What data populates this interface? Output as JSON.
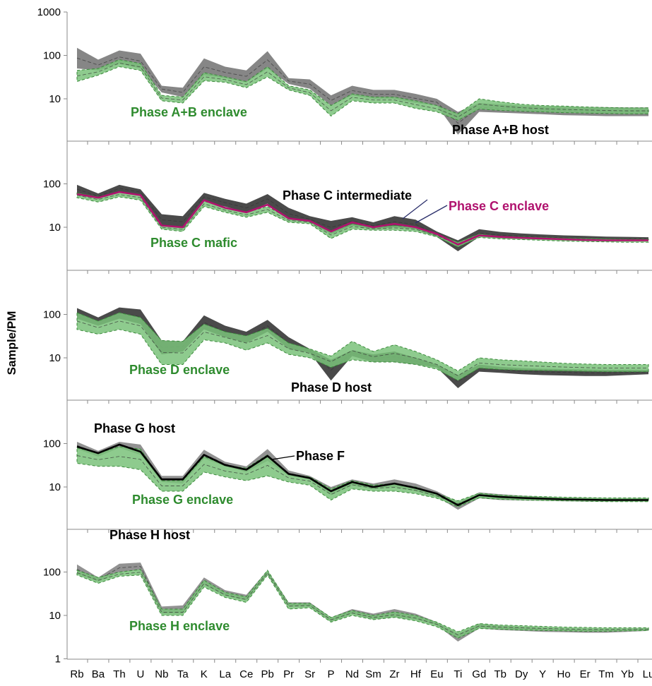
{
  "chart_data": {
    "type": "area",
    "ylabel": "Sample/PM",
    "yscale": "log",
    "categories": [
      "Rb",
      "Ba",
      "Th",
      "U",
      "Nb",
      "Ta",
      "K",
      "La",
      "Ce",
      "Pb",
      "Pr",
      "Sr",
      "P",
      "Nd",
      "Sm",
      "Zr",
      "Hf",
      "Eu",
      "Ti",
      "Gd",
      "Tb",
      "Dy",
      "Y",
      "Ho",
      "Er",
      "Tm",
      "Yb",
      "Lu"
    ],
    "colors": {
      "host": "#7f7f7f",
      "host_dark": "#404040",
      "enclave": "#7ac27a",
      "enclave_edge": "#3a8a3a",
      "magenta": "#b0126e",
      "black_label": "#000000",
      "green_label": "#2e8b2e",
      "pointer": "#2b2f6b"
    },
    "panels": [
      {
        "ylim": [
          1,
          1000
        ],
        "yticks": [
          "1000",
          "100",
          "10"
        ],
        "series": [
          {
            "role": "host",
            "color": "#7f7f7f",
            "low": [
              50,
              45,
              65,
              50,
              14,
              11,
              35,
              30,
              24,
              50,
              22,
              17,
              7,
              12,
              10,
              10,
              8,
              7,
              1.5,
              5,
              4.8,
              4.6,
              4.4,
              4.2,
              4.1,
              4,
              4,
              4
            ],
            "high": [
              150,
              80,
              130,
              110,
              20,
              18,
              85,
              55,
              45,
              125,
              30,
              28,
              12,
              20,
              16,
              16,
              13,
              10,
              5,
              8,
              7.5,
              7,
              6.8,
              6.6,
              6.5,
              6.4,
              6.3,
              6.3
            ]
          },
          {
            "role": "enclave",
            "color": "#7ac27a",
            "low": [
              25,
              35,
              55,
              45,
              9,
              8,
              26,
              24,
              18,
              32,
              16,
              12,
              4,
              9,
              8,
              8,
              6,
              5,
              3.2,
              5.8,
              5.4,
              5.2,
              5,
              4.8,
              4.7,
              4.6,
              4.5,
              4.5
            ],
            "high": [
              45,
              50,
              80,
              65,
              12,
              11,
              40,
              32,
              25,
              55,
              20,
              16,
              7,
              13,
              11,
              11,
              9,
              7,
              4.5,
              10,
              8.5,
              7.5,
              7,
              6.8,
              6.5,
              6.3,
              6.2,
              6.2
            ]
          }
        ],
        "labels": [
          {
            "text": "Phase A+B enclave",
            "color": "#2e8b2e"
          },
          {
            "text": "Phase A+B host",
            "color": "#000000"
          }
        ]
      },
      {
        "ylim": [
          1,
          1000
        ],
        "yticks": [
          "100",
          "10"
        ],
        "series": [
          {
            "role": "host",
            "color": "#404040",
            "low": [
              60,
              45,
              65,
              55,
              11,
              10,
              40,
              30,
              22,
              35,
              15,
              13,
              7,
              11,
              9,
              10,
              9,
              6,
              2.8,
              6,
              5.6,
              5.4,
              5.2,
              5,
              4.9,
              4.8,
              4.8,
              4.8
            ],
            "high": [
              95,
              60,
              95,
              75,
              20,
              18,
              62,
              45,
              35,
              58,
              28,
              18,
              14,
              17,
              13,
              18,
              15,
              8,
              5,
              9,
              7.8,
              7.2,
              6.8,
              6.5,
              6.3,
              6.1,
              6,
              5.9
            ]
          },
          {
            "role": "enclave",
            "color": "#7ac27a",
            "low": [
              48,
              38,
              50,
              42,
              9,
              8,
              30,
              22,
              17,
              22,
              13,
              12,
              5.5,
              9,
              8.5,
              8.5,
              8,
              6,
              3.5,
              5.8,
              5.4,
              5.2,
              5,
              4.8,
              4.7,
              4.6,
              4.5,
              4.5
            ],
            "high": [
              62,
              50,
              65,
              55,
              11,
              10,
              40,
              28,
              22,
              30,
              16,
              14,
              8,
              12,
              10,
              11,
              10,
              7,
              4.5,
              7,
              6.2,
              6,
              5.8,
              5.6,
              5.5,
              5.4,
              5.3,
              5.3
            ]
          },
          {
            "role": "line",
            "color": "#b0126e",
            "values": [
              58,
              48,
              65,
              55,
              11,
              10,
              42,
              28,
              22,
              33,
              16,
              14,
              8,
              13,
              10,
              12,
              10,
              7,
              4,
              6.5,
              6,
              5.7,
              5.5,
              5.3,
              5.1,
              5,
              5,
              5
            ]
          }
        ],
        "labels": [
          {
            "text": "Phase C intermediate",
            "color": "#000000"
          },
          {
            "text": "Phase C enclave",
            "color": "#b0126e"
          },
          {
            "text": "Phase C mafic",
            "color": "#2e8b2e"
          }
        ]
      },
      {
        "ylim": [
          1,
          1000
        ],
        "yticks": [
          "100",
          "10"
        ],
        "series": [
          {
            "role": "host",
            "color": "#404040",
            "low": [
              80,
              55,
              80,
              60,
              12,
              14,
              45,
              30,
              22,
              40,
              16,
              13,
              3,
              11,
              8,
              8,
              7,
              6,
              2,
              4.8,
              4.5,
              4.2,
              4,
              3.9,
              3.8,
              3.8,
              4,
              4.2
            ],
            "high": [
              140,
              85,
              145,
              130,
              25,
              24,
              95,
              55,
              40,
              75,
              30,
              16,
              9,
              15,
              12,
              14,
              10,
              7,
              4,
              7,
              6.2,
              5.8,
              5.6,
              5.5,
              5.4,
              5.3,
              5.3,
              5.3
            ]
          },
          {
            "role": "enclave",
            "color": "#7ac27a",
            "low": [
              45,
              35,
              45,
              35,
              7,
              7,
              26,
              22,
              15,
              22,
              12,
              10,
              6,
              9,
              8,
              8,
              7,
              5.5,
              3,
              5.8,
              5.4,
              5.2,
              5.1,
              5,
              4.9,
              4.8,
              4.8,
              4.8
            ],
            "high": [
              110,
              70,
              110,
              85,
              25,
              24,
              60,
              40,
              32,
              48,
              22,
              16,
              11,
              24,
              14,
              20,
              14,
              9,
              5,
              10,
              9,
              8.5,
              8,
              7.5,
              7.2,
              7,
              7,
              7
            ]
          }
        ],
        "labels": [
          {
            "text": "Phase D enclave",
            "color": "#2e8b2e"
          },
          {
            "text": "Phase D host",
            "color": "#000000"
          }
        ]
      },
      {
        "ylim": [
          1,
          1000
        ],
        "yticks": [
          "100",
          "10"
        ],
        "series": [
          {
            "role": "host",
            "color": "#8c8c8c",
            "low": [
              75,
              50,
              80,
              55,
              13,
              12,
              45,
              30,
              22,
              40,
              18,
              15,
              6.5,
              11,
              9,
              10,
              8,
              6,
              3,
              5.5,
              5,
              4.9,
              4.8,
              4.7,
              4.6,
              4.6,
              4.6,
              4.6
            ],
            "high": [
              110,
              68,
              110,
              95,
              18,
              18,
              72,
              38,
              30,
              75,
              24,
              18,
              10,
              15,
              12,
              15,
              12,
              8,
              4.5,
              7.5,
              6.8,
              6.3,
              6,
              5.8,
              5.7,
              5.6,
              5.6,
              5.6
            ]
          },
          {
            "role": "enclave",
            "color": "#7ac27a",
            "low": [
              35,
              30,
              30,
              25,
              8,
              8,
              22,
              17,
              14,
              18,
              13,
              11,
              5,
              9,
              8,
              8,
              7,
              5.5,
              3.5,
              5.6,
              5.2,
              5,
              4.9,
              4.8,
              4.7,
              4.6,
              4.6,
              4.6
            ],
            "high": [
              80,
              60,
              85,
              75,
              14,
              14,
              50,
              32,
              27,
              55,
              20,
              17,
              9,
              14,
              11,
              12,
              10,
              7,
              4.8,
              7.2,
              6.5,
              6.2,
              6,
              5.8,
              5.7,
              5.6,
              5.6,
              5.6
            ]
          },
          {
            "role": "line",
            "color": "#000000",
            "values": [
              85,
              60,
              95,
              65,
              15,
              15,
              55,
              32,
              25,
              52,
              20,
              16,
              8,
              13,
              10,
              12,
              9.5,
              7,
              3.8,
              6.5,
              5.9,
              5.6,
              5.4,
              5.2,
              5.1,
              5,
              5,
              5
            ]
          }
        ],
        "labels": [
          {
            "text": "Phase G host",
            "color": "#000000"
          },
          {
            "text": "Phase F",
            "color": "#000000"
          },
          {
            "text": "Phase G enclave",
            "color": "#2e8b2e"
          }
        ]
      },
      {
        "ylim": [
          1,
          1000
        ],
        "yticks": [
          "100",
          "10",
          "1"
        ],
        "series": [
          {
            "role": "host",
            "color": "#8c8c8c",
            "low": [
              90,
              60,
              100,
              110,
              11,
              11,
              50,
              28,
              22,
              85,
              16,
              16,
              7,
              11,
              8,
              9,
              8,
              6,
              2.5,
              5,
              4.6,
              4.4,
              4.2,
              4.1,
              4,
              4,
              4.2,
              4.4
            ],
            "high": [
              150,
              75,
              155,
              165,
              16,
              17,
              75,
              38,
              30,
              110,
              20,
              20,
              9,
              14,
              11,
              14,
              11,
              7,
              3.8,
              6.5,
              5.8,
              5.5,
              5.2,
              5,
              4.9,
              4.9,
              4.9,
              5
            ]
          },
          {
            "role": "enclave",
            "color": "#7ac27a",
            "low": [
              85,
              55,
              80,
              85,
              10,
              10,
              45,
              26,
              20,
              85,
              14,
              15,
              7,
              10,
              8,
              9,
              7.5,
              5.5,
              3,
              5,
              4.8,
              4.6,
              4.5,
              4.4,
              4.3,
              4.3,
              4.4,
              4.5
            ],
            "high": [
              110,
              75,
              100,
              115,
              14,
              14,
              65,
              34,
              27,
              110,
              19,
              19,
              9,
              13,
              10,
              12,
              10,
              7,
              4.2,
              6.5,
              6,
              5.8,
              5.6,
              5.4,
              5.3,
              5.2,
              5.2,
              5.2
            ]
          }
        ],
        "labels": [
          {
            "text": "Phase H host",
            "color": "#000000"
          },
          {
            "text": "Phase H enclave",
            "color": "#2e8b2e"
          }
        ]
      }
    ]
  }
}
